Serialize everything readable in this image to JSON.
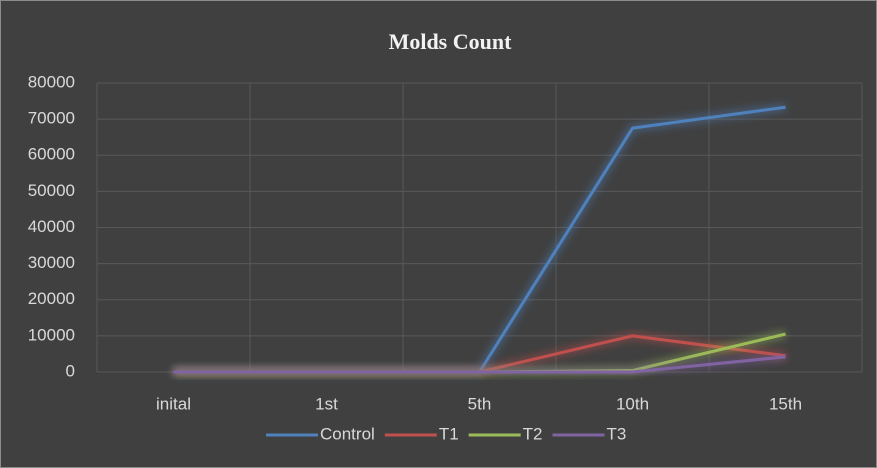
{
  "chart_data": {
    "type": "line",
    "title": "Molds Count",
    "categories": [
      "inital",
      "1st",
      "5th",
      "10th",
      "15th"
    ],
    "series": [
      {
        "name": "Control",
        "color": "#4f81bd",
        "values": [
          0,
          0,
          0,
          67500,
          73300
        ]
      },
      {
        "name": "T1",
        "color": "#c0504d",
        "values": [
          0,
          0,
          0,
          10000,
          4500
        ]
      },
      {
        "name": "T2",
        "color": "#9bbb59",
        "values": [
          0,
          0,
          0,
          400,
          10500
        ]
      },
      {
        "name": "T3",
        "color": "#8064a2",
        "values": [
          0,
          0,
          0,
          0,
          4200
        ]
      }
    ],
    "ylim": [
      0,
      80000
    ],
    "yticks": [
      0,
      10000,
      20000,
      30000,
      40000,
      50000,
      60000,
      70000,
      80000
    ],
    "grid": true,
    "legend": "bottom"
  }
}
